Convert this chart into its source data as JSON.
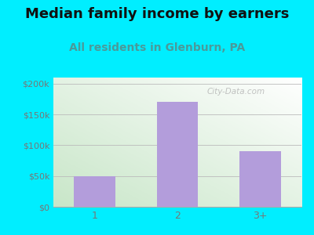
{
  "title": "Median family income by earners",
  "subtitle": "All residents in Glenburn, PA",
  "categories": [
    "1",
    "2",
    "3+"
  ],
  "values": [
    50000,
    170000,
    90000
  ],
  "bar_color": "#b39ddb",
  "outer_bg": "#00eeff",
  "title_fontsize": 13,
  "subtitle_fontsize": 10,
  "yticks": [
    0,
    50000,
    100000,
    150000,
    200000
  ],
  "ytick_labels": [
    "$0",
    "$50k",
    "$100k",
    "$150k",
    "$200k"
  ],
  "ylim": [
    0,
    210000
  ],
  "watermark": "City-Data.com",
  "subtitle_color": "#4a9a9a",
  "title_color": "#111111",
  "tick_color": "#777777"
}
